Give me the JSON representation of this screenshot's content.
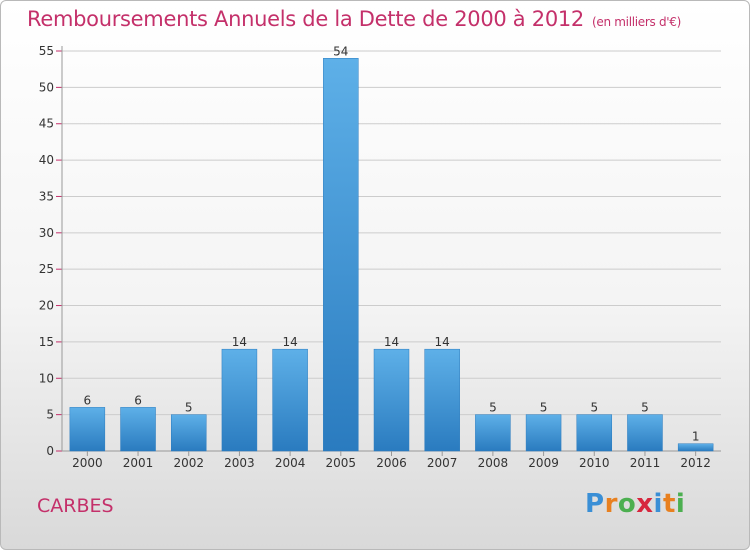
{
  "header": {
    "title": "Remboursements Annuels de la Dette de 2000 à 2012",
    "unit": "(en milliers d'€)"
  },
  "footer": {
    "place": "CARBES",
    "brand_letters": [
      "P",
      "r",
      "o",
      "x",
      "i",
      "t",
      "i"
    ],
    "brand_colors": [
      "#3a8fd6",
      "#e8801f",
      "#4caf50",
      "#d7263d",
      "#3a8fd6",
      "#e8801f",
      "#4caf50"
    ]
  },
  "colors": {
    "title": "#c4306a",
    "bar_light": "#5eb0e8",
    "bar_dark": "#2a7bbf",
    "grid": "#cccccc",
    "tick_mark": "#c4306a"
  },
  "chart_data": {
    "type": "bar",
    "categories": [
      "2000",
      "2001",
      "2002",
      "2003",
      "2004",
      "2005",
      "2006",
      "2007",
      "2008",
      "2009",
      "2010",
      "2011",
      "2012"
    ],
    "values": [
      6,
      6,
      5,
      14,
      14,
      54,
      14,
      14,
      5,
      5,
      5,
      5,
      1
    ],
    "ylim": [
      0,
      55
    ],
    "yticks": [
      0,
      5,
      10,
      15,
      20,
      25,
      30,
      35,
      40,
      45,
      50,
      55
    ],
    "grid": true,
    "legend": "none",
    "data_labels": true
  }
}
